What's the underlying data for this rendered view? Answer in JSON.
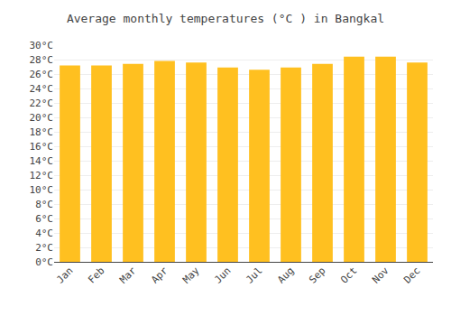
{
  "chart_data": {
    "type": "bar",
    "title": "Average monthly temperatures (°C ) in Bangkal",
    "categories": [
      "Jan",
      "Feb",
      "Mar",
      "Apr",
      "May",
      "Jun",
      "Jul",
      "Aug",
      "Sep",
      "Oct",
      "Nov",
      "Dec"
    ],
    "values": [
      27.2,
      27.2,
      27.4,
      27.8,
      27.6,
      26.9,
      26.6,
      26.9,
      27.4,
      28.4,
      28.4,
      27.6
    ],
    "color": "#FFC020",
    "ylim": [
      0,
      30
    ],
    "yticks": [
      {
        "value": 0,
        "label": "0°C"
      },
      {
        "value": 2,
        "label": "2°C"
      },
      {
        "value": 4,
        "label": "4°C"
      },
      {
        "value": 6,
        "label": "6°C"
      },
      {
        "value": 8,
        "label": "8°C"
      },
      {
        "value": 10,
        "label": "10°C"
      },
      {
        "value": 12,
        "label": "12°C"
      },
      {
        "value": 14,
        "label": "14°C"
      },
      {
        "value": 16,
        "label": "16°C"
      },
      {
        "value": 18,
        "label": "18°C"
      },
      {
        "value": 20,
        "label": "20°C"
      },
      {
        "value": 22,
        "label": "22°C"
      },
      {
        "value": 24,
        "label": "24°C"
      },
      {
        "value": 26,
        "label": "26°C"
      },
      {
        "value": 28,
        "label": "28°C"
      },
      {
        "value": 30,
        "label": "30°C"
      }
    ],
    "grid": true
  }
}
